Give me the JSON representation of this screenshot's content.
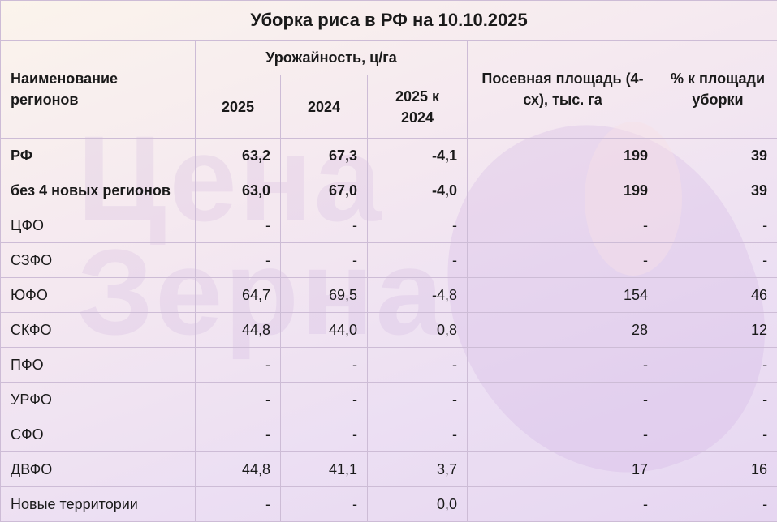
{
  "watermark": "Цена Зерна",
  "title": "Уборка риса в РФ на 10.10.2025",
  "headers": {
    "region": "Наименование регионов",
    "yield": "Урожайность, ц/га",
    "y2025": "2025",
    "y2024": "2024",
    "diff": "2025 к 2024",
    "area": "Посевная площадь (4-сх), тыс. га",
    "pct": "% к площади уборки"
  },
  "rows": [
    {
      "name": "РФ",
      "y2025": "63,2",
      "y2024": "67,3",
      "diff": "-4,1",
      "area": "199",
      "pct": "39",
      "bold": true
    },
    {
      "name": "без 4 новых регионов",
      "y2025": "63,0",
      "y2024": "67,0",
      "diff": "-4,0",
      "area": "199",
      "pct": "39",
      "bold": true
    },
    {
      "name": "ЦФО",
      "y2025": "-",
      "y2024": "-",
      "diff": "-",
      "area": "-",
      "pct": "-"
    },
    {
      "name": "СЗФО",
      "y2025": "-",
      "y2024": "-",
      "diff": "-",
      "area": "-",
      "pct": "-"
    },
    {
      "name": "ЮФО",
      "y2025": "64,7",
      "y2024": "69,5",
      "diff": "-4,8",
      "area": "154",
      "pct": "46"
    },
    {
      "name": "СКФО",
      "y2025": "44,8",
      "y2024": "44,0",
      "diff": "0,8",
      "area": "28",
      "pct": "12"
    },
    {
      "name": "ПФО",
      "y2025": "-",
      "y2024": "-",
      "diff": "-",
      "area": "-",
      "pct": "-"
    },
    {
      "name": "УРФО",
      "y2025": "-",
      "y2024": "-",
      "diff": "-",
      "area": "-",
      "pct": "-"
    },
    {
      "name": "СФО",
      "y2025": "-",
      "y2024": "-",
      "diff": "-",
      "area": "-",
      "pct": "-"
    },
    {
      "name": "ДВФО",
      "y2025": "44,8",
      "y2024": "41,1",
      "diff": "3,7",
      "area": "17",
      "pct": "16"
    },
    {
      "name": "Новые территории",
      "y2025": "-",
      "y2024": "-",
      "diff": "0,0",
      "area": "-",
      "pct": "-"
    }
  ]
}
